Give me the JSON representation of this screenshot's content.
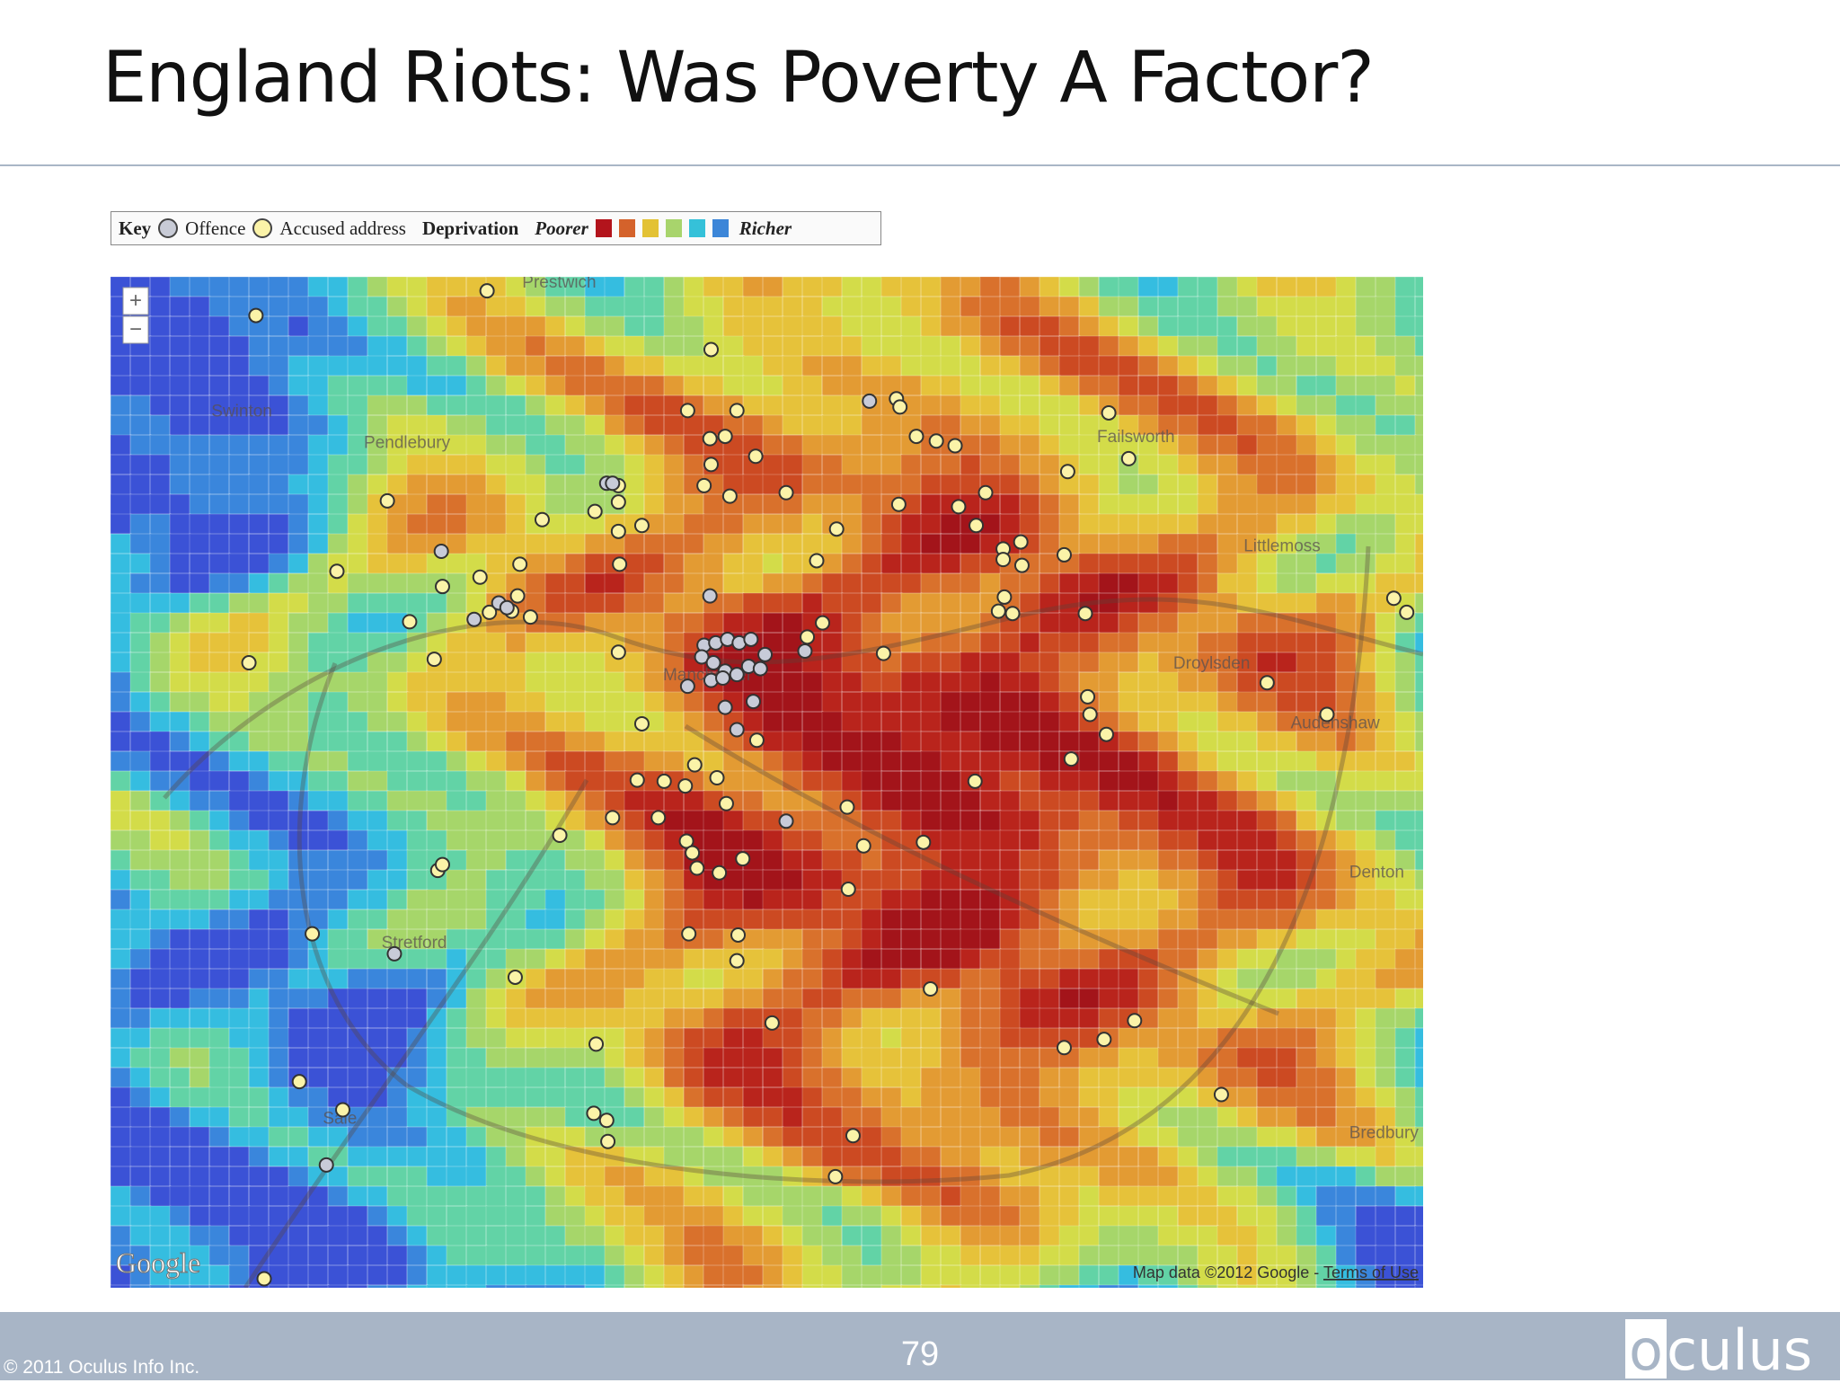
{
  "header": {
    "title": "England Riots: Was Poverty A Factor?"
  },
  "legend": {
    "key": "Key",
    "offence": "Offence",
    "accused": "Accused address",
    "deprivation": "Deprivation",
    "poorer": "Poorer",
    "richer": "Richer"
  },
  "map": {
    "labels": [
      "Prestwich",
      "Swinton",
      "Pendlebury",
      "Failsworth",
      "Littlemoss",
      "Droylsden",
      "Audenshaw",
      "Denton",
      "Manchester",
      "Stretford",
      "Sale",
      "Bredbury"
    ],
    "zoom_in": "+",
    "zoom_out": "−",
    "provider": "Google",
    "attribution": "Map data ©2012 Google - ",
    "terms": "Terms of Use"
  },
  "footer": {
    "copyright": "© 2011 Oculus Info Inc.",
    "page_number": "79",
    "logo_first": "o",
    "logo_rest": "culus"
  }
}
